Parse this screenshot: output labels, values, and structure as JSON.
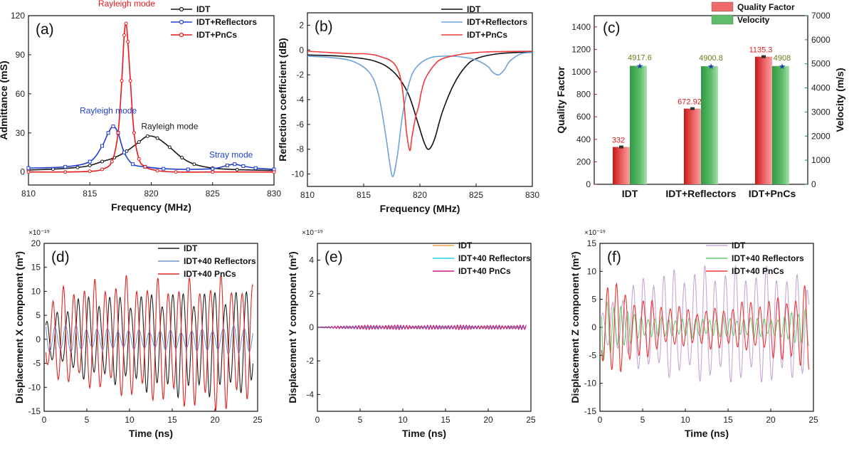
{
  "chart_data": [
    {
      "id": "a",
      "type": "line",
      "panel_label": "(a)",
      "xlabel": "Frequency (MHz)",
      "ylabel": "Admittance (mS)",
      "xlim": [
        810,
        830
      ],
      "ylim": [
        -10,
        120
      ],
      "xticks": [
        810,
        815,
        820,
        825,
        830
      ],
      "yticks": [
        0,
        30,
        60,
        90,
        120
      ],
      "legend": {
        "position": "top-right",
        "entries": [
          "IDT",
          "IDT+Reflectors",
          "IDT+PnCs"
        ]
      },
      "series": [
        {
          "name": "IDT",
          "color": "#1a1a1a",
          "marker": "circle",
          "x": [
            810,
            812,
            814,
            815,
            816,
            817,
            818,
            819,
            819.7,
            820.5,
            821.5,
            822.5,
            823.5,
            825,
            827,
            830
          ],
          "y": [
            1.5,
            2.2,
            3.5,
            5,
            8,
            11,
            16,
            23,
            27.5,
            26,
            19,
            11,
            6,
            3,
            1.8,
            1.2
          ]
        },
        {
          "name": "IDT+Reflectors",
          "color": "#1f3fd1",
          "marker": "square",
          "x": [
            810,
            813,
            815,
            816,
            816.5,
            816.9,
            817.3,
            817.8,
            818.5,
            819.5,
            821,
            823,
            825,
            826.2,
            826.8,
            827.5,
            828.5,
            830
          ],
          "y": [
            3,
            4,
            8,
            20,
            30,
            35,
            30,
            15,
            6,
            4,
            2.5,
            2,
            2.5,
            5,
            6,
            4.5,
            3,
            2
          ]
        },
        {
          "name": "IDT+PnCs",
          "color": "#e8191c",
          "marker": "triangle",
          "x": [
            810,
            813,
            815,
            816,
            816.8,
            817.3,
            817.6,
            817.8,
            817.95,
            818.1,
            818.3,
            818.6,
            819,
            819.5,
            820.5,
            822,
            825,
            830
          ],
          "y": [
            0,
            0,
            0.5,
            2,
            8,
            30,
            70,
            105,
            114,
            100,
            70,
            30,
            10,
            4,
            1,
            0,
            0,
            0
          ]
        }
      ],
      "annotations": [
        {
          "text": "Rayleigh mode",
          "color": "#e8191c",
          "x": 818,
          "y": 127
        },
        {
          "text": "Rayleigh mode",
          "color": "#1f3fd1",
          "x": 816.5,
          "y": 45
        },
        {
          "text": "Rayleigh mode",
          "color": "#1a1a1a",
          "x": 821.5,
          "y": 33
        },
        {
          "text": "Stray mode",
          "color": "#1f3fd1",
          "x": 826.5,
          "y": 11
        }
      ]
    },
    {
      "id": "b",
      "type": "line",
      "panel_label": "(b)",
      "xlabel": "Frequency (MHz)",
      "ylabel": "Reflection coefficient (dB)",
      "xlim": [
        810,
        830
      ],
      "ylim": [
        -11,
        3
      ],
      "xticks": [
        810,
        815,
        820,
        825,
        830
      ],
      "yticks": [
        -10,
        -8,
        -6,
        -4,
        -2,
        0,
        2
      ],
      "legend": {
        "position": "top-right",
        "entries": [
          "IDT",
          "IDT+Reflectors",
          "IDT+PnCs"
        ]
      },
      "series": [
        {
          "name": "IDT",
          "color": "#111111",
          "x": [
            810,
            813,
            815,
            816,
            817,
            818,
            819,
            819.8,
            820.4,
            820.8,
            821.3,
            822,
            823,
            824,
            825,
            827,
            830
          ],
          "y": [
            -0.4,
            -0.5,
            -0.7,
            -0.9,
            -1.3,
            -2.1,
            -3.6,
            -5.8,
            -7.5,
            -8,
            -7.2,
            -5,
            -2.8,
            -1.4,
            -0.7,
            -0.3,
            -0.15
          ]
        },
        {
          "name": "IDT+Reflectors",
          "color": "#6fa2d8",
          "x": [
            810,
            812,
            814,
            815.5,
            816.3,
            816.9,
            817.3,
            817.6,
            818,
            818.5,
            819.2,
            820,
            821,
            822,
            823,
            824,
            825,
            826,
            826.5,
            827,
            827.5,
            828,
            829,
            830
          ],
          "y": [
            -0.5,
            -0.6,
            -0.9,
            -1.8,
            -3.5,
            -6.5,
            -9,
            -10.2,
            -8.5,
            -5,
            -2.2,
            -1.1,
            -0.6,
            -0.5,
            -0.5,
            -0.6,
            -0.8,
            -1.3,
            -1.8,
            -2,
            -1.6,
            -0.9,
            -0.3,
            -0.2
          ]
        },
        {
          "name": "IDT+PnCs",
          "color": "#f23a3a",
          "x": [
            810,
            812,
            814,
            815,
            816,
            816.7,
            817.3,
            817.8,
            818.2,
            818.5,
            818.8,
            819.1,
            819.3,
            819.6,
            819.9,
            820.1,
            820.4,
            820.8,
            821.3,
            822,
            824,
            826,
            830
          ],
          "y": [
            -0.1,
            -0.2,
            -0.3,
            -0.3,
            -0.4,
            -0.6,
            -0.8,
            -1.2,
            -2,
            -3.5,
            -6.5,
            -8.1,
            -7,
            -5.5,
            -4.5,
            -3.5,
            -2.5,
            -1.8,
            -1.2,
            -0.7,
            -0.3,
            -0.15,
            -0.1
          ]
        }
      ]
    },
    {
      "id": "c",
      "type": "bar",
      "panel_label": "(c)",
      "categories": [
        "IDT",
        "IDT+Reflectors",
        "IDT+PnCs"
      ],
      "ylabel": "Quality Factor",
      "y2label": "Velocity (m/s)",
      "ylim": [
        0,
        1500
      ],
      "y2lim": [
        0,
        7000
      ],
      "yticks": [
        0,
        200,
        400,
        600,
        800,
        1000,
        1200,
        1400
      ],
      "y2ticks": [
        0,
        1000,
        2000,
        3000,
        4000,
        5000,
        6000,
        7000
      ],
      "legend": {
        "position": "top-right",
        "entries": [
          "Quality Factor",
          "Velocity"
        ]
      },
      "series": [
        {
          "name": "Quality Factor",
          "axis": "left",
          "color": "#f06a6a",
          "values": [
            332,
            672.92,
            1135.3
          ],
          "labels": [
            "332",
            "672.92",
            "1135.3"
          ]
        },
        {
          "name": "Velocity",
          "axis": "right",
          "color": "#5fbd6a",
          "values": [
            4917.6,
            4900.8,
            4908
          ],
          "labels": [
            "4917.6",
            "4900.8",
            "4908"
          ]
        }
      ]
    },
    {
      "id": "d",
      "type": "line",
      "panel_label": "(d)",
      "xlabel": "Time (ns)",
      "ylabel": "Displacement X component (m²)",
      "exponent": "×10⁻¹⁹",
      "xlim": [
        0,
        25
      ],
      "ylim": [
        -15,
        20
      ],
      "xticks": [
        0,
        5,
        10,
        15,
        20,
        25
      ],
      "yticks": [
        -15,
        -10,
        -5,
        0,
        5,
        10,
        15,
        20
      ],
      "legend": {
        "position": "top-right",
        "entries": [
          "IDT",
          "IDT+40 Reflectors",
          "IDT+40 PnCs"
        ]
      },
      "series": [
        {
          "name": "IDT",
          "color": "#222222",
          "wave": {
            "period": 1.23,
            "amp": [
              3,
              7,
              8,
              8,
              9,
              9.5,
              9.5,
              9.5,
              9
            ],
            "t_end": 24.5
          }
        },
        {
          "name": "IDT+40 Reflectors",
          "color": "#6f97cf",
          "wave": {
            "period": 1.23,
            "amp": [
              3,
              2.5,
              2,
              1.8,
              1.8,
              1.8,
              2,
              2.5,
              3
            ],
            "t_end": 24.5
          }
        },
        {
          "name": "IDT+40 PnCs",
          "color": "#e02525",
          "wave": {
            "period": 1.23,
            "amp": [
              7,
              9.5,
              10,
              11,
              11,
              11.5,
              12,
              12.5,
              10
            ],
            "t_end": 24.5
          }
        }
      ]
    },
    {
      "id": "e",
      "type": "line",
      "panel_label": "(e)",
      "xlabel": "Time (ns)",
      "ylabel": "Displacement Y component (m²)",
      "exponent": "×10⁻¹⁹",
      "xlim": [
        0,
        25
      ],
      "ylim": [
        -5,
        5
      ],
      "xticks": [
        0,
        5,
        10,
        15,
        20,
        25
      ],
      "yticks": [
        -4,
        -2,
        0,
        2,
        4
      ],
      "legend": {
        "position": "top-right",
        "entries": [
          "IDT",
          "IDT+40 Reflectors",
          "IDT+40 PnCs"
        ]
      },
      "series": [
        {
          "name": "IDT",
          "color": "#f2a24a",
          "wave": {
            "period": 0.4,
            "amp": [
              0.03,
              0.05,
              0.05,
              0.05,
              0.05
            ],
            "t_end": 24.5
          }
        },
        {
          "name": "IDT+40 Reflectors",
          "color": "#22d3f0",
          "wave": {
            "period": 0.4,
            "amp": [
              0.03,
              0.05,
              0.05,
              0.05,
              0.05
            ],
            "t_end": 24.5
          }
        },
        {
          "name": "IDT+40 PnCs",
          "color": "#d1157f",
          "wave": {
            "period": 0.35,
            "amp": [
              0.02,
              0.1,
              0.12,
              0.1,
              0.12,
              0.1,
              0.12
            ],
            "t_end": 24.5
          }
        }
      ]
    },
    {
      "id": "f",
      "type": "line",
      "panel_label": "(f)",
      "xlabel": "Time (ns)",
      "ylabel": "Displacement Z component (m²)",
      "exponent": "×10⁻¹⁹",
      "xlim": [
        0,
        25
      ],
      "ylim": [
        -15,
        15
      ],
      "xticks": [
        0,
        5,
        10,
        15,
        20,
        25
      ],
      "yticks": [
        -15,
        -10,
        -5,
        0,
        5,
        10,
        15
      ],
      "legend": {
        "position": "top-right",
        "entries": [
          "IDT",
          "IDT+40 Reflectors",
          "IDT+40 PnCs"
        ]
      },
      "series": [
        {
          "name": "IDT",
          "color": "#c4a8d4",
          "wave": {
            "period": 1.2,
            "amp": [
              2,
              6,
              8,
              8.5,
              9,
              9,
              9,
              9,
              7
            ],
            "t_end": 24.5
          }
        },
        {
          "name": "IDT+40 Reflectors",
          "color": "#5fd07a",
          "wave": {
            "period": 0.8,
            "amp": [
              6,
              2.5,
              1.5,
              1.5,
              1.5,
              1.5,
              1.5,
              1.5,
              4
            ],
            "t_end": 24.5
          }
        },
        {
          "name": "IDT+40 PnCs",
          "color": "#ee3535",
          "wave": {
            "period": 1.05,
            "amp": [
              8,
              6,
              4,
              3,
              3,
              3.5,
              4,
              5,
              7
            ],
            "t_end": 24.5
          }
        }
      ]
    }
  ]
}
